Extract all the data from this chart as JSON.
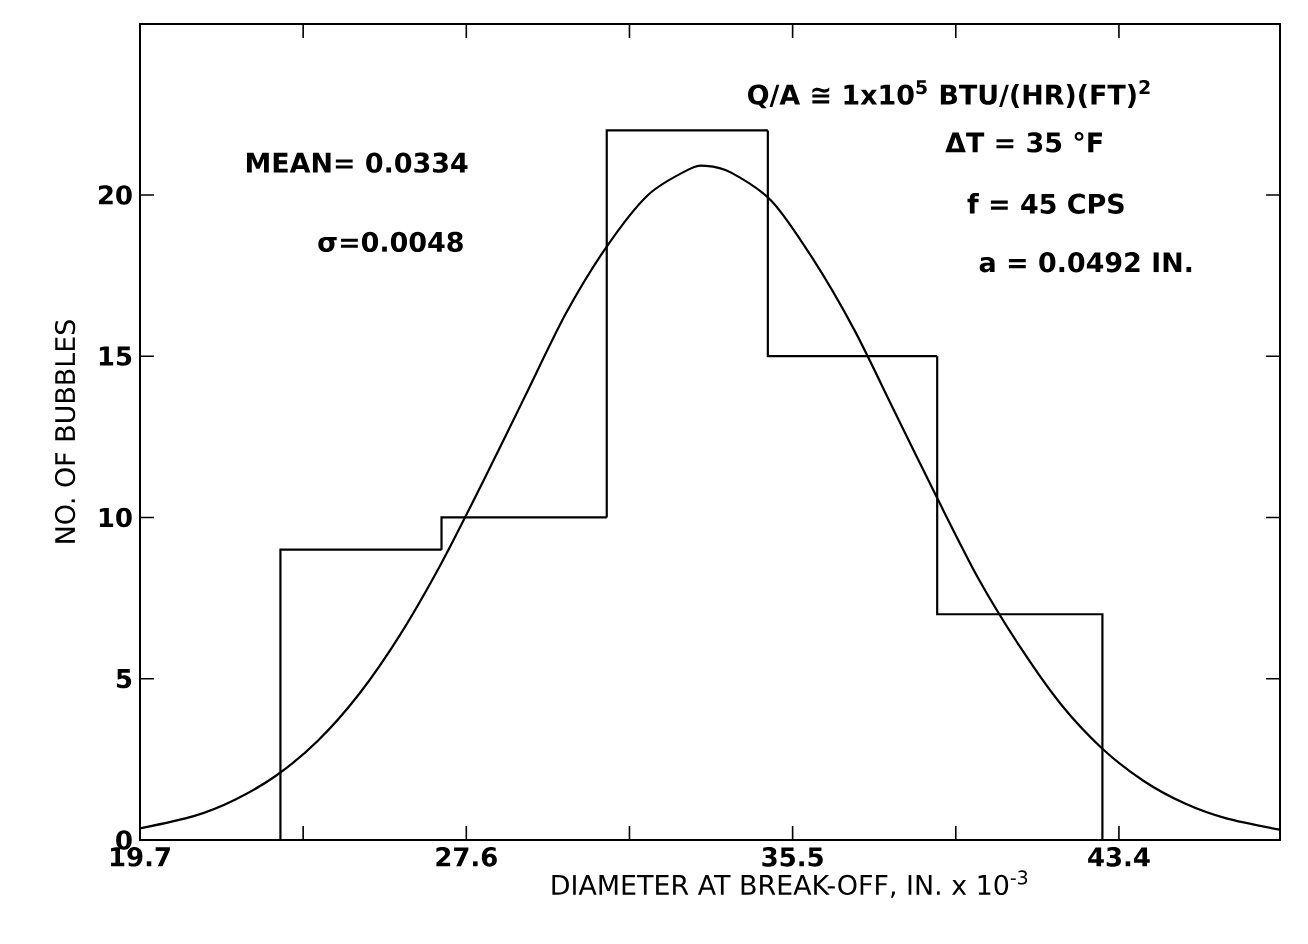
{
  "chart_data": {
    "type": "histogram",
    "xlabel": "DIAMETER AT BREAK-OFF, IN. x 10$^{-3}$",
    "ylabel": "NO. OF BUBBLES",
    "xlim": [
      19.7,
      47.3
    ],
    "ylim": [
      0,
      25.3
    ],
    "xticks": [
      19.7,
      {
        "value": 23.65,
        "label": null
      },
      27.6,
      {
        "value": 31.55,
        "label": null
      },
      35.5,
      {
        "value": 39.45,
        "label": null
      },
      43.4
    ],
    "yticks": [
      0,
      5,
      10,
      15,
      20
    ],
    "grid": false,
    "series": [
      {
        "color": "#000000",
        "bins": [
          23.1,
          27.0,
          31.0,
          34.9,
          39.0,
          43.0
        ],
        "values": [
          9,
          10,
          22,
          15,
          7
        ]
      },
      {
        "type": "line",
        "color": "#000000",
        "x": [
          19.7,
          21,
          22,
          23,
          24,
          25,
          26,
          27,
          28,
          29,
          30,
          31,
          32,
          33,
          33.4,
          34,
          35,
          36,
          37,
          38,
          39,
          40,
          41,
          42,
          43,
          44,
          45,
          46,
          47.3
        ],
        "values": [
          0.36,
          0.74,
          1.25,
          2.0,
          3.07,
          4.52,
          6.37,
          8.59,
          11.1,
          13.7,
          16.3,
          18.4,
          20.0,
          20.8,
          20.9,
          20.7,
          19.8,
          18.0,
          15.8,
          13.2,
          10.6,
          8.1,
          6.0,
          4.2,
          2.83,
          1.83,
          1.13,
          0.67,
          0.32
        ]
      }
    ],
    "annotations": [
      "MEAN= 0.0334",
      "σ=0.0048",
      "Q/A ≅ 1x10$^{5}$ BTU/(HR)(FT)$^{2}$",
      "ΔT = 35 °F",
      "f = 45 CPS",
      "a = 0.0492 IN."
    ]
  }
}
